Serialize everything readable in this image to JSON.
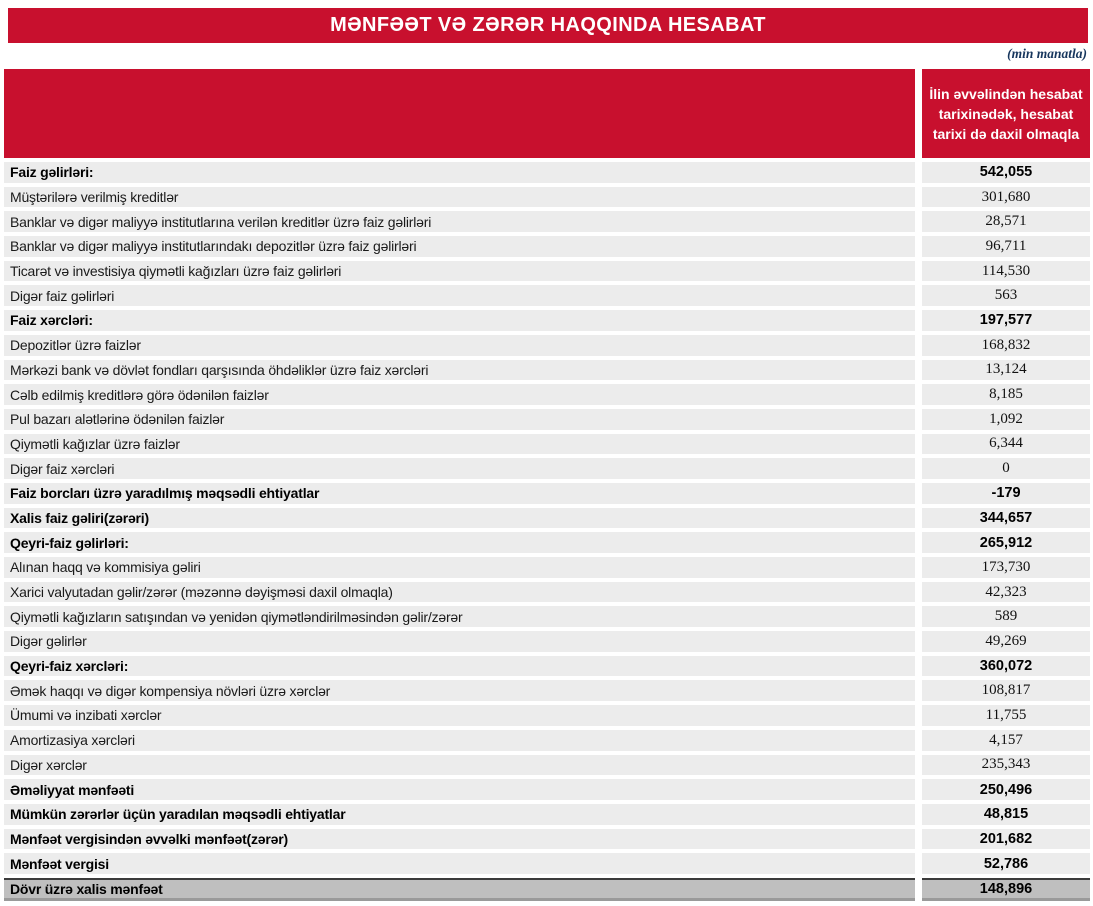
{
  "title": "MƏNFƏƏT VƏ ZƏRƏR HAQQINDA HESABAT",
  "unit_note": "(min manatla)",
  "colors": {
    "accent_red": "#C8102E",
    "row_bg": "#ECECEC",
    "total_row_bg": "#BFBFBF",
    "unit_note_color": "#17365D"
  },
  "table": {
    "value_header": "İlin əvvəlindən hesabat tarixinədək, hesabat tarixi də daxil olmaqla",
    "rows": [
      {
        "label": "Faiz gəlirləri:",
        "value": "542,055",
        "bold": true,
        "total": false
      },
      {
        "label": "Müştərilərə verilmiş kreditlər",
        "value": "301,680",
        "bold": false,
        "total": false
      },
      {
        "label": "Banklar və digər maliyyə institutlarına verilən kreditlər üzrə faiz gəlirləri",
        "value": "28,571",
        "bold": false,
        "total": false
      },
      {
        "label": "Banklar və digər maliyyə institutlarındakı depozitlər üzrə faiz gəlirləri",
        "value": "96,711",
        "bold": false,
        "total": false
      },
      {
        "label": "Ticarət və investisiya qiymətli kağızları üzrə faiz gəlirləri",
        "value": "114,530",
        "bold": false,
        "total": false
      },
      {
        "label": "Digər faiz gəlirləri",
        "value": "563",
        "bold": false,
        "total": false
      },
      {
        "label": "Faiz xərcləri:",
        "value": "197,577",
        "bold": true,
        "total": false
      },
      {
        "label": "Depozitlər üzrə faizlər",
        "value": "168,832",
        "bold": false,
        "total": false
      },
      {
        "label": "Mərkəzi bank və dövlət fondları qarşısında öhdəliklər üzrə faiz xərcləri",
        "value": "13,124",
        "bold": false,
        "total": false
      },
      {
        "label": "Cəlb edilmiş kreditlərə görə ödənilən faizlər",
        "value": "8,185",
        "bold": false,
        "total": false
      },
      {
        "label": "Pul bazarı alətlərinə ödənilən faizlər",
        "value": "1,092",
        "bold": false,
        "total": false
      },
      {
        "label": "Qiymətli kağızlar üzrə faizlər",
        "value": "6,344",
        "bold": false,
        "total": false
      },
      {
        "label": "Digər faiz xərcləri",
        "value": "0",
        "bold": false,
        "total": false
      },
      {
        "label": "Faiz borcları üzrə yaradılmış məqsədli ehtiyatlar",
        "value": "-179",
        "bold": true,
        "total": false
      },
      {
        "label": "Xalis faiz gəliri(zərəri)",
        "value": "344,657",
        "bold": true,
        "total": false
      },
      {
        "label": "Qeyri-faiz gəlirləri:",
        "value": "265,912",
        "bold": true,
        "total": false
      },
      {
        "label": "Alınan haqq və kommisiya gəliri",
        "value": "173,730",
        "bold": false,
        "total": false
      },
      {
        "label": "Xarici valyutadan gəlir/zərər (məzənnə dəyişməsi daxil olmaqla)",
        "value": "42,323",
        "bold": false,
        "total": false
      },
      {
        "label": "Qiymətli kağızların satışından və yenidən qiymətləndirilməsindən gəlir/zərər",
        "value": "589",
        "bold": false,
        "total": false
      },
      {
        "label": "Digər gəlirlər",
        "value": "49,269",
        "bold": false,
        "total": false
      },
      {
        "label": "Qeyri-faiz xərcləri:",
        "value": "360,072",
        "bold": true,
        "total": false
      },
      {
        "label": "Əmək haqqı və digər kompensiya növləri üzrə xərclər",
        "value": "108,817",
        "bold": false,
        "total": false
      },
      {
        "label": "Ümumi və inzibati xərclər",
        "value": "11,755",
        "bold": false,
        "total": false
      },
      {
        "label": "Amortizasiya xərcləri",
        "value": "4,157",
        "bold": false,
        "total": false
      },
      {
        "label": "Digər xərclər",
        "value": "235,343",
        "bold": false,
        "total": false
      },
      {
        "label": "Əməliyyat mənfəəti",
        "value": "250,496",
        "bold": true,
        "total": false
      },
      {
        "label": "Mümkün zərərlər üçün yaradılan məqsədli ehtiyatlar",
        "value": "48,815",
        "bold": true,
        "total": false
      },
      {
        "label": "Mənfəət vergisindən əvvəlki mənfəət(zərər)",
        "value": "201,682",
        "bold": true,
        "total": false
      },
      {
        "label": "Mənfəət vergisi",
        "value": "52,786",
        "bold": true,
        "total": false
      },
      {
        "label": "Dövr üzrə xalis mənfəət",
        "value": "148,896",
        "bold": true,
        "total": true
      }
    ]
  }
}
